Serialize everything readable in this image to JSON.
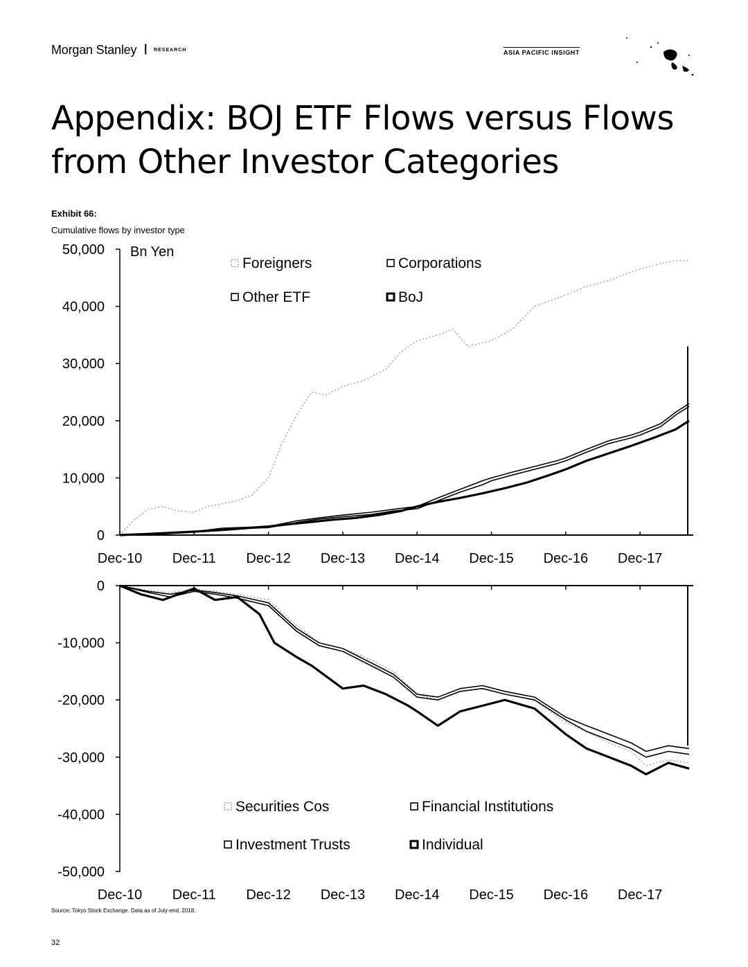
{
  "header": {
    "logo": "Morgan Stanley",
    "separator": "|",
    "section": "RESEARCH",
    "series_name": "ASIA PACIFIC INSIGHT"
  },
  "page_title": "Appendix: BOJ ETF Flows versus Flows from Other Investor Categories",
  "exhibit_label": "Exhibit 66:",
  "exhibit_subtitle": "Cumulative flows by investor type",
  "source_note": "Source: Tokyo Stock Exchange. Data as of July-end, 2018.",
  "page_number": "32",
  "colors": {
    "ink": "#000000",
    "light_series": "#9a9a9a",
    "background": "#ffffff"
  },
  "chart_data": [
    {
      "type": "line",
      "unit_label": "Bn Yen",
      "ylabel": "Bn Yen",
      "ylim": [
        0,
        50000
      ],
      "y_ticks": [
        "50,000",
        "40,000",
        "30,000",
        "20,000",
        "10,000",
        "0"
      ],
      "x_ticks": [
        "Dec-10",
        "Dec-11",
        "Dec-12",
        "Dec-13",
        "Dec-14",
        "Dec-15",
        "Dec-16",
        "Dec-17"
      ],
      "xlim": [
        2010.92,
        2018.58
      ],
      "legend": [
        "Foreigners",
        "Corporations",
        "Other ETF",
        "BoJ"
      ],
      "legend_position": "top",
      "series": [
        {
          "name": "Foreigners",
          "style": "dotted-light",
          "x": [
            2010.92,
            2011.1,
            2011.3,
            2011.5,
            2011.7,
            2011.92,
            2012.1,
            2012.3,
            2012.5,
            2012.7,
            2012.92,
            2013.1,
            2013.3,
            2013.5,
            2013.7,
            2013.92,
            2014.2,
            2014.5,
            2014.7,
            2014.92,
            2015.2,
            2015.4,
            2015.6,
            2015.92,
            2016.2,
            2016.5,
            2016.92,
            2017.2,
            2017.5,
            2017.8,
            2017.92,
            2018.2,
            2018.4,
            2018.58
          ],
          "y": [
            0,
            2500,
            4500,
            5000,
            4200,
            4000,
            5000,
            5500,
            6000,
            7000,
            10000,
            16000,
            21000,
            25000,
            24500,
            26000,
            27000,
            29000,
            32000,
            34000,
            35000,
            36000,
            33000,
            34000,
            36000,
            40000,
            42000,
            43500,
            44500,
            46000,
            46500,
            47500,
            48000,
            48000
          ]
        },
        {
          "name": "Corporations",
          "style": "solid-thin",
          "x": [
            2010.92,
            2011.5,
            2011.92,
            2012.3,
            2012.92,
            2013.3,
            2013.6,
            2013.92,
            2014.3,
            2014.6,
            2014.92,
            2015.2,
            2015.5,
            2015.8,
            2015.92,
            2016.2,
            2016.5,
            2016.8,
            2016.92,
            2017.2,
            2017.5,
            2017.8,
            2017.92,
            2018.2,
            2018.4,
            2018.58
          ],
          "y": [
            0,
            300,
            600,
            1200,
            1500,
            2500,
            3000,
            3500,
            4000,
            4500,
            5000,
            6500,
            8000,
            9500,
            10000,
            11000,
            12000,
            13000,
            13500,
            15000,
            16500,
            17500,
            18000,
            19500,
            21500,
            23000
          ]
        },
        {
          "name": "Other ETF",
          "style": "solid-thin",
          "x": [
            2010.92,
            2011.5,
            2011.92,
            2012.3,
            2012.92,
            2013.3,
            2013.6,
            2013.92,
            2014.3,
            2014.6,
            2014.92,
            2015.2,
            2015.5,
            2015.8,
            2015.92,
            2016.2,
            2016.5,
            2016.8,
            2016.92,
            2017.2,
            2017.5,
            2017.8,
            2017.92,
            2018.2,
            2018.4,
            2018.58
          ],
          "y": [
            0,
            200,
            500,
            1000,
            1300,
            2200,
            2800,
            3200,
            3600,
            4200,
            4600,
            6000,
            7500,
            8800,
            9500,
            10500,
            11500,
            12500,
            13000,
            14500,
            16000,
            17000,
            17500,
            19000,
            21000,
            22500
          ]
        },
        {
          "name": "BoJ",
          "style": "solid-thick",
          "x": [
            2010.92,
            2011.3,
            2011.6,
            2011.92,
            2012.3,
            2012.6,
            2012.92,
            2013.2,
            2013.5,
            2013.8,
            2014.1,
            2014.4,
            2014.7,
            2014.92,
            2015.2,
            2015.5,
            2015.8,
            2016.1,
            2016.4,
            2016.7,
            2016.92,
            2017.2,
            2017.5,
            2017.8,
            2018.1,
            2018.4,
            2018.58
          ],
          "y": [
            0,
            200,
            400,
            600,
            900,
            1200,
            1500,
            1900,
            2300,
            2700,
            3000,
            3500,
            4200,
            5000,
            5800,
            6500,
            7300,
            8200,
            9200,
            10500,
            11500,
            13000,
            14300,
            15600,
            17000,
            18500,
            20000
          ]
        }
      ]
    },
    {
      "type": "line",
      "ylim": [
        -50000,
        0
      ],
      "y_ticks": [
        "0",
        "-10,000",
        "-20,000",
        "-30,000",
        "-40,000",
        "-50,000"
      ],
      "x_ticks": [
        "Dec-10",
        "Dec-11",
        "Dec-12",
        "Dec-13",
        "Dec-14",
        "Dec-15",
        "Dec-16",
        "Dec-17"
      ],
      "xlim": [
        2010.92,
        2018.58
      ],
      "legend": [
        "Securities Cos",
        "Financial Institutions",
        "Investment Trusts",
        "Individual"
      ],
      "legend_position": "bottom",
      "series": [
        {
          "name": "Securities Cos",
          "style": "dotted-light",
          "x": [
            2010.92,
            2011.3,
            2011.6,
            2011.92,
            2012.2,
            2012.5,
            2012.92,
            2013.3,
            2013.6,
            2013.92,
            2014.3,
            2014.6,
            2014.92,
            2015.2,
            2015.5,
            2015.8,
            2016.1,
            2016.5,
            2016.92,
            2017.2,
            2017.5,
            2017.8,
            2018.0,
            2018.3,
            2018.58
          ],
          "y": [
            0,
            -800,
            -1200,
            -600,
            -1000,
            -1500,
            -2500,
            -7000,
            -10000,
            -11000,
            -13000,
            -15000,
            -19000,
            -20000,
            -18500,
            -18000,
            -19000,
            -20000,
            -24000,
            -25500,
            -27500,
            -29000,
            -31500,
            -30500,
            -31000
          ]
        },
        {
          "name": "Financial Institutions",
          "style": "solid-thin",
          "x": [
            2010.92,
            2011.3,
            2011.6,
            2011.92,
            2012.2,
            2012.5,
            2012.92,
            2013.3,
            2013.6,
            2013.92,
            2014.3,
            2014.6,
            2014.92,
            2015.2,
            2015.5,
            2015.8,
            2016.1,
            2016.5,
            2016.92,
            2017.2,
            2017.5,
            2017.8,
            2018.0,
            2018.3,
            2018.58
          ],
          "y": [
            0,
            -1000,
            -1500,
            -800,
            -1200,
            -1800,
            -3000,
            -7500,
            -10000,
            -11000,
            -13500,
            -15500,
            -19000,
            -19500,
            -18000,
            -17500,
            -18500,
            -19500,
            -23000,
            -24500,
            -26000,
            -27500,
            -29000,
            -28000,
            -28500
          ]
        },
        {
          "name": "Investment Trusts",
          "style": "solid-thin",
          "x": [
            2010.92,
            2011.3,
            2011.6,
            2011.92,
            2012.2,
            2012.5,
            2012.92,
            2013.3,
            2013.6,
            2013.92,
            2014.3,
            2014.6,
            2014.92,
            2015.2,
            2015.5,
            2015.8,
            2016.1,
            2016.5,
            2016.92,
            2017.2,
            2017.5,
            2017.8,
            2018.0,
            2018.3,
            2018.58
          ],
          "y": [
            0,
            -1200,
            -2000,
            -1000,
            -1500,
            -2200,
            -3500,
            -8000,
            -10500,
            -11500,
            -14000,
            -16000,
            -19500,
            -20000,
            -18500,
            -18000,
            -19000,
            -20000,
            -23500,
            -25500,
            -27000,
            -28500,
            -30000,
            -29000,
            -29500
          ]
        },
        {
          "name": "Individual",
          "style": "solid-thick",
          "x": [
            2010.92,
            2011.2,
            2011.5,
            2011.92,
            2012.2,
            2012.5,
            2012.8,
            2013.0,
            2013.3,
            2013.5,
            2013.92,
            2014.2,
            2014.5,
            2014.8,
            2014.92,
            2015.2,
            2015.5,
            2015.8,
            2016.1,
            2016.5,
            2016.92,
            2017.2,
            2017.5,
            2017.8,
            2018.0,
            2018.3,
            2018.58
          ],
          "y": [
            0,
            -1500,
            -2500,
            -500,
            -2500,
            -2000,
            -5000,
            -10000,
            -12500,
            -14000,
            -18000,
            -17500,
            -19000,
            -21000,
            -22000,
            -24500,
            -22000,
            -21000,
            -20000,
            -21500,
            -26000,
            -28500,
            -30000,
            -31500,
            -33000,
            -31000,
            -32000
          ]
        }
      ]
    }
  ]
}
